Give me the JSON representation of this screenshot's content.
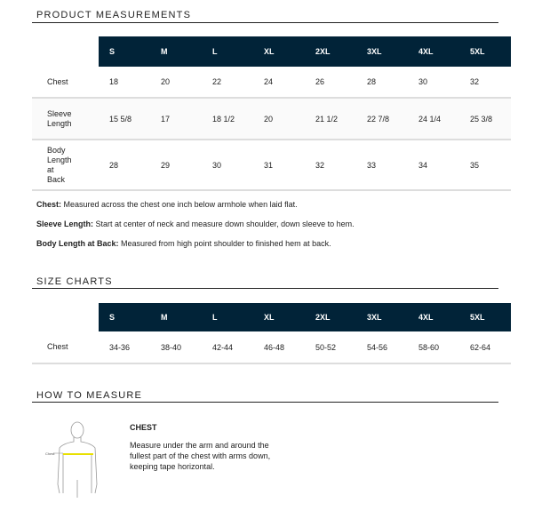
{
  "product_measurements": {
    "title": "PRODUCT MEASUREMENTS",
    "sizes": [
      "S",
      "M",
      "L",
      "XL",
      "2XL",
      "3XL",
      "4XL",
      "5XL"
    ],
    "rows": [
      {
        "label": "Chest",
        "values": [
          "18",
          "20",
          "22",
          "24",
          "26",
          "28",
          "30",
          "32"
        ]
      },
      {
        "label": "Sleeve Length",
        "values": [
          "15 5/8",
          "17",
          "18 1/2",
          "20",
          "21 1/2",
          "22 7/8",
          "24 1/4",
          "25 3/8"
        ]
      },
      {
        "label": "Body Length at Back",
        "values": [
          "28",
          "29",
          "30",
          "31",
          "32",
          "33",
          "34",
          "35"
        ]
      }
    ],
    "notes": [
      {
        "term": "Chest:",
        "text": " Measured across the chest one inch below armhole when laid flat."
      },
      {
        "term": "Sleeve Length:",
        "text": " Start at center of neck and measure down shoulder, down sleeve to hem."
      },
      {
        "term": "Body Length at Back:",
        "text": " Measured from high point shoulder to finished hem at back."
      }
    ]
  },
  "size_charts": {
    "title": "SIZE CHARTS",
    "sizes": [
      "S",
      "M",
      "L",
      "XL",
      "2XL",
      "3XL",
      "4XL",
      "5XL"
    ],
    "rows": [
      {
        "label": "Chest",
        "values": [
          "34-36",
          "38-40",
          "42-44",
          "46-48",
          "50-52",
          "54-56",
          "58-60",
          "62-64"
        ]
      }
    ]
  },
  "how_to_measure": {
    "title": "HOW TO MEASURE",
    "figure_label": "Chest",
    "heading": "CHEST",
    "text": "Measure under the arm and around the fullest part of the chest with arms down, keeping tape horizontal."
  },
  "colors": {
    "header_bg": "#012338",
    "tape": "#e8e000"
  }
}
